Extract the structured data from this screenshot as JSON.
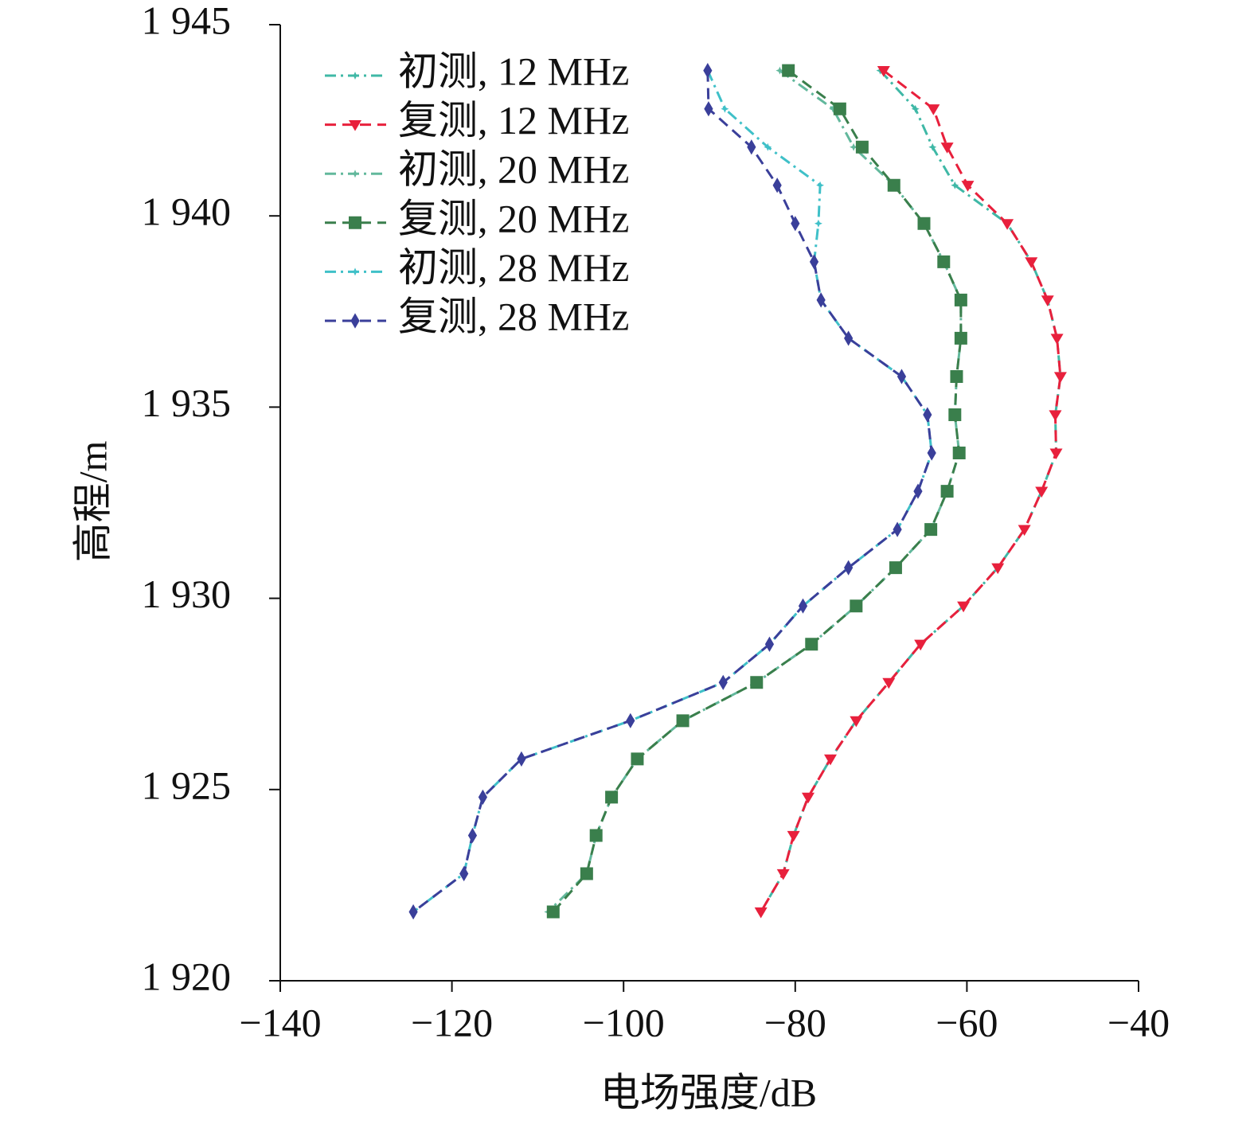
{
  "chart_data": {
    "type": "line",
    "xlabel": "电场强度/dB",
    "ylabel": "高程/m",
    "xlim": [
      -140,
      -40
    ],
    "ylim": [
      1920,
      1945
    ],
    "xticks": [
      {
        "value": -140,
        "label": "−140"
      },
      {
        "value": -120,
        "label": "−120"
      },
      {
        "value": -100,
        "label": "−100"
      },
      {
        "value": -80,
        "label": "−80"
      },
      {
        "value": -60,
        "label": "−60"
      },
      {
        "value": -40,
        "label": "−40"
      }
    ],
    "yticks": [
      {
        "value": 1920,
        "label": "1 920"
      },
      {
        "value": 1925,
        "label": "1 925"
      },
      {
        "value": 1930,
        "label": "1 930"
      },
      {
        "value": 1935,
        "label": "1 935"
      },
      {
        "value": 1940,
        "label": "1 940"
      },
      {
        "value": 1945,
        "label": "1 945"
      }
    ],
    "legend": "upper left",
    "series": [
      {
        "name": "初测, 12 MHz",
        "color": "#3fb8a6",
        "line": "dashdot",
        "marker": "star",
        "x": [
          -70.1,
          -66.0,
          -64.0,
          -61.4,
          -55.3,
          -52.5,
          -50.6,
          -49.5,
          -49.1,
          -49.7,
          -49.6,
          -51.3,
          -53.3,
          -56.4,
          -60.4,
          -65.4,
          -69.1,
          -72.9,
          -75.9,
          -78.5,
          -80.2,
          -81.4,
          -84.0
        ],
        "values": [
          1943.8,
          1942.8,
          1941.8,
          1940.8,
          1939.8,
          1938.8,
          1937.8,
          1936.8,
          1935.8,
          1934.8,
          1933.8,
          1932.8,
          1931.8,
          1930.8,
          1929.8,
          1928.8,
          1927.8,
          1926.8,
          1925.8,
          1924.8,
          1923.8,
          1922.8,
          1921.8
        ]
      },
      {
        "name": "复测, 12 MHz",
        "color": "#e8203c",
        "line": "dash",
        "marker": "triangle",
        "x": [
          -69.7,
          -63.9,
          -62.3,
          -59.9,
          -55.3,
          -52.5,
          -50.6,
          -49.5,
          -49.1,
          -49.7,
          -49.6,
          -51.3,
          -53.3,
          -56.4,
          -60.4,
          -65.4,
          -69.1,
          -72.9,
          -75.9,
          -78.5,
          -80.2,
          -81.4,
          -84.0
        ],
        "values": [
          1943.8,
          1942.8,
          1941.8,
          1940.8,
          1939.8,
          1938.8,
          1937.8,
          1936.8,
          1935.8,
          1934.8,
          1933.8,
          1932.8,
          1931.8,
          1930.8,
          1929.8,
          1928.8,
          1927.8,
          1926.8,
          1925.8,
          1924.8,
          1923.8,
          1922.8,
          1921.8
        ]
      },
      {
        "name": "初测, 20 MHz",
        "color": "#62b89c",
        "line": "dashdot",
        "marker": "star",
        "x": [
          -81.8,
          -75.6,
          -73.2,
          -68.5,
          -65.0,
          -62.7,
          -60.7,
          -60.7,
          -61.2,
          -61.4,
          -60.9,
          -62.3,
          -64.2,
          -68.3,
          -72.9,
          -78.1,
          -84.5,
          -93.1,
          -98.4,
          -101.4,
          -103.2,
          -104.3,
          -108.8
        ],
        "values": [
          1943.8,
          1942.8,
          1941.8,
          1940.8,
          1939.8,
          1938.8,
          1937.8,
          1936.8,
          1935.8,
          1934.8,
          1933.8,
          1932.8,
          1931.8,
          1930.8,
          1929.8,
          1928.8,
          1927.8,
          1926.8,
          1925.8,
          1924.8,
          1923.8,
          1922.8,
          1921.8
        ]
      },
      {
        "name": "复测, 20 MHz",
        "color": "#3a7f4c",
        "line": "dash",
        "marker": "square",
        "x": [
          -80.8,
          -74.8,
          -72.2,
          -68.5,
          -65.0,
          -62.7,
          -60.7,
          -60.7,
          -61.2,
          -61.4,
          -60.9,
          -62.3,
          -64.2,
          -68.3,
          -72.9,
          -78.1,
          -84.5,
          -93.1,
          -98.4,
          -101.4,
          -103.2,
          -104.3,
          -108.2
        ],
        "values": [
          1943.8,
          1942.8,
          1941.8,
          1940.8,
          1939.8,
          1938.8,
          1937.8,
          1936.8,
          1935.8,
          1934.8,
          1933.8,
          1932.8,
          1931.8,
          1930.8,
          1929.8,
          1928.8,
          1927.8,
          1926.8,
          1925.8,
          1924.8,
          1923.8,
          1922.8,
          1921.8
        ]
      },
      {
        "name": "初测, 28 MHz",
        "color": "#3fc0c8",
        "line": "dashdot",
        "marker": "star",
        "x": [
          -90.2,
          -88.2,
          -83.2,
          -77.1,
          -77.3,
          -77.8,
          -77.0,
          -73.8,
          -67.6,
          -64.6,
          -64.1,
          -65.7,
          -68.1,
          -73.8,
          -79.1,
          -83.0,
          -88.4,
          -99.2,
          -111.9,
          -116.4,
          -117.6,
          -118.6,
          -124.5
        ],
        "values": [
          1943.8,
          1942.8,
          1941.8,
          1940.8,
          1939.8,
          1938.8,
          1937.8,
          1936.8,
          1935.8,
          1934.8,
          1933.8,
          1932.8,
          1931.8,
          1930.8,
          1929.8,
          1928.8,
          1927.8,
          1926.8,
          1925.8,
          1924.8,
          1923.8,
          1922.8,
          1921.8
        ]
      },
      {
        "name": "复测, 28 MHz",
        "color": "#3a3f9a",
        "line": "dash",
        "marker": "diamond",
        "x": [
          -90.2,
          -90.1,
          -85.1,
          -82.1,
          -80.0,
          -77.8,
          -77.0,
          -73.8,
          -67.6,
          -64.6,
          -64.1,
          -65.7,
          -68.1,
          -73.8,
          -79.1,
          -83.0,
          -88.4,
          -99.2,
          -111.9,
          -116.4,
          -117.6,
          -118.6,
          -124.5
        ],
        "values": [
          1943.8,
          1942.8,
          1941.8,
          1940.8,
          1939.8,
          1938.8,
          1937.8,
          1936.8,
          1935.8,
          1934.8,
          1933.8,
          1932.8,
          1931.8,
          1930.8,
          1929.8,
          1928.8,
          1927.8,
          1926.8,
          1925.8,
          1924.8,
          1923.8,
          1922.8,
          1921.8
        ]
      }
    ]
  }
}
